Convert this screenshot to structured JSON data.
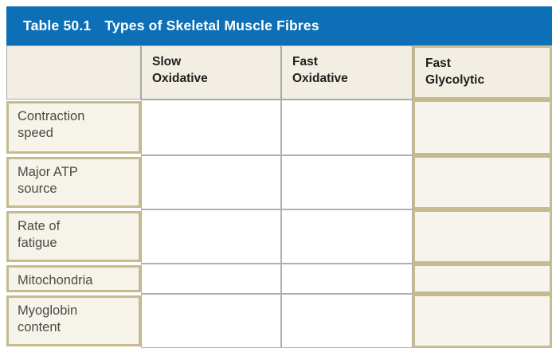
{
  "title_bar": {
    "number": "Table 50.1",
    "title": "Types of Skeletal Muscle Fibres"
  },
  "column_headers": [
    "Slow\nOxidative",
    "Fast\nOxidative",
    "Fast\nGlycolytic"
  ],
  "highlighted_column": "Fast Glycolytic",
  "rows": [
    {
      "label": "Contraction\nspeed",
      "values": [
        "",
        "",
        ""
      ]
    },
    {
      "label": "Major ATP\nsource",
      "values": [
        "",
        "",
        ""
      ]
    },
    {
      "label": "Rate of\nfatigue",
      "values": [
        "",
        "",
        ""
      ]
    },
    {
      "label": "Mitochondria",
      "values": [
        "",
        "",
        ""
      ]
    },
    {
      "label": "Myoglobin\ncontent",
      "values": [
        "",
        "",
        ""
      ]
    }
  ],
  "colors": {
    "title_bar_blue": "#0d70b6",
    "highlight_khaki_border": "#c5bb8e",
    "row_label_cream": "#f6f3ea",
    "header_beige": "#f2eee4",
    "highlight_cell_bg": "#f7f4ed",
    "grid_line_gray": "#b0b0b0",
    "title_text": "#ffffff"
  }
}
